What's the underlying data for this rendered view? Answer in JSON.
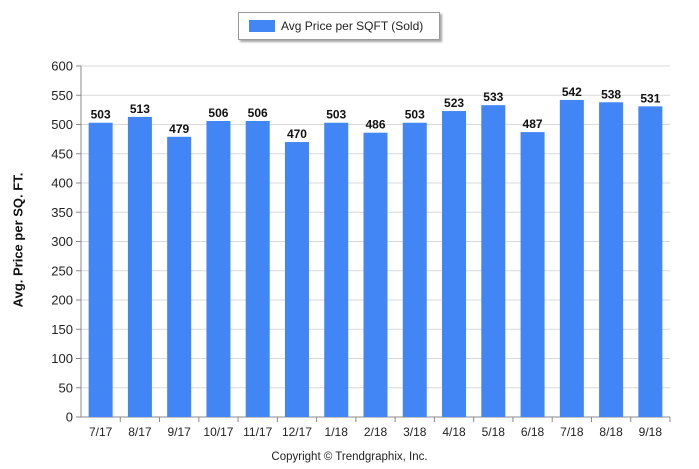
{
  "chart_data": {
    "type": "bar",
    "categories": [
      "7/17",
      "8/17",
      "9/17",
      "10/17",
      "11/17",
      "12/17",
      "1/18",
      "2/18",
      "3/18",
      "4/18",
      "5/18",
      "6/18",
      "7/18",
      "8/18",
      "9/18"
    ],
    "series": [
      {
        "name": "Avg Price per SQFT (Sold)",
        "values": [
          503,
          513,
          479,
          506,
          506,
          470,
          503,
          486,
          503,
          523,
          533,
          487,
          542,
          538,
          531
        ]
      }
    ],
    "xlabel": "",
    "ylabel": "Avg. Price per SQ. FT.",
    "ylim": [
      0,
      600
    ],
    "yticks": [
      0,
      50,
      100,
      150,
      200,
      250,
      300,
      350,
      400,
      450,
      500,
      550,
      600
    ],
    "grid": true,
    "legend": "top-center",
    "data_labels": true,
    "bar_color": "#4285f4"
  },
  "footer": {
    "copyright": "Copyright © Trendgraphix, Inc."
  }
}
